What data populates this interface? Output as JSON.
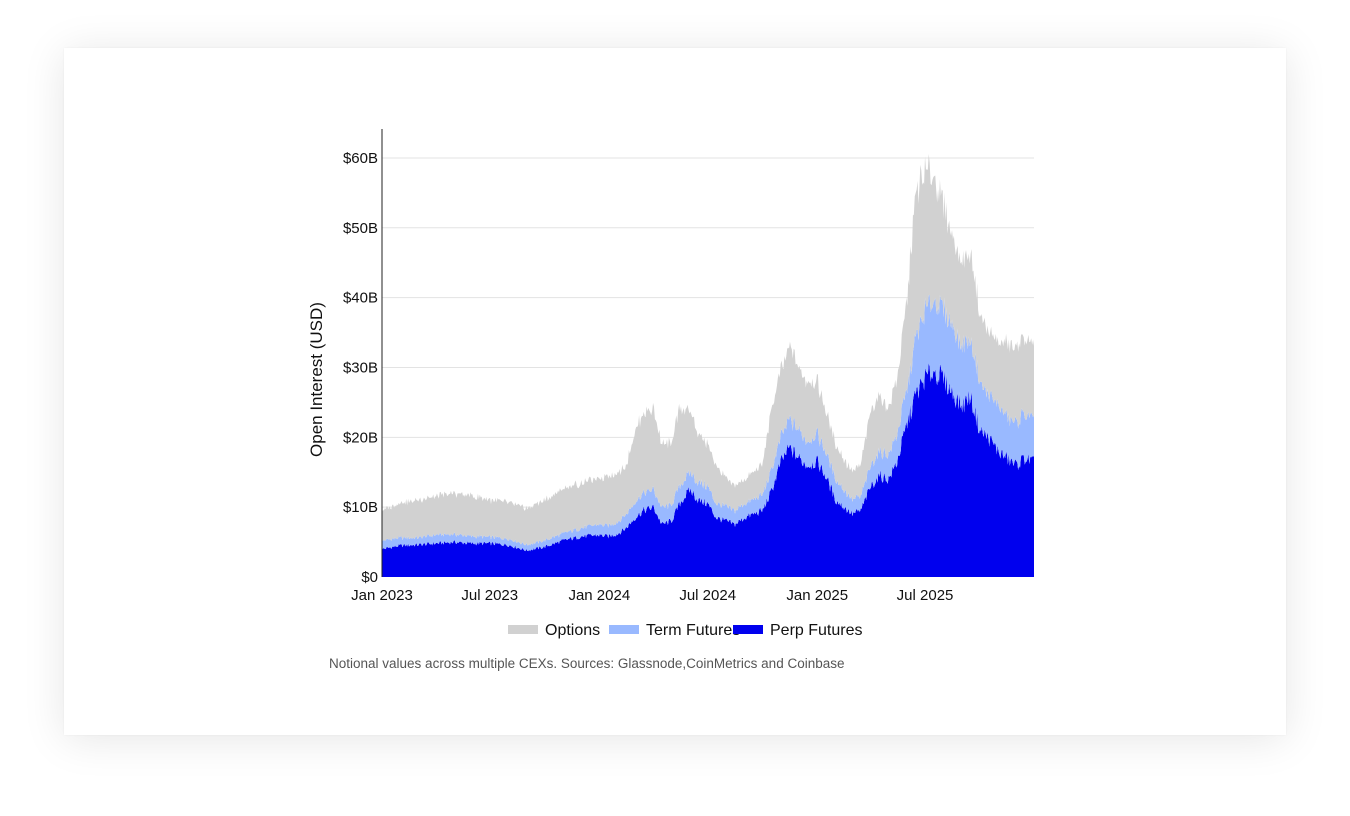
{
  "chart_data": {
    "type": "area",
    "stacked": true,
    "ylabel": "Open Interest (USD)",
    "xlabel": "",
    "ylim": [
      0,
      64
    ],
    "y_unit": "billion USD",
    "yticks": [
      0,
      10,
      20,
      30,
      40,
      50,
      60
    ],
    "ytick_labels": [
      "$0",
      "$10B",
      "$20B",
      "$30B",
      "$40B",
      "$50B",
      "$60B"
    ],
    "x_range": [
      "2023-01-01",
      "2025-12-31"
    ],
    "xticks": [
      "2023-01-01",
      "2023-07-01",
      "2024-01-01",
      "2024-07-01",
      "2025-01-01",
      "2025-07-01"
    ],
    "xtick_labels": [
      "Jan 2023",
      "Jul 2023",
      "Jan 2024",
      "Jul 2024",
      "Jan 2025",
      "Jul 2025"
    ],
    "grid": "horizontal",
    "legend_position": "bottom",
    "legend": [
      "Options",
      "Term Futures",
      "Perp Futures"
    ],
    "note": "Notional values across multiple CEXs. Sources: Glassnode,CoinMetrics and Coinbase",
    "dates": [
      "2023-01-01",
      "2023-02-01",
      "2023-03-01",
      "2023-04-01",
      "2023-05-01",
      "2023-06-01",
      "2023-07-01",
      "2023-08-01",
      "2023-09-01",
      "2023-10-01",
      "2023-11-01",
      "2023-12-01",
      "2024-01-01",
      "2024-01-15",
      "2024-02-01",
      "2024-02-15",
      "2024-03-01",
      "2024-03-15",
      "2024-04-01",
      "2024-04-15",
      "2024-05-01",
      "2024-05-15",
      "2024-06-01",
      "2024-06-15",
      "2024-07-01",
      "2024-07-15",
      "2024-08-01",
      "2024-08-15",
      "2024-09-01",
      "2024-10-01",
      "2024-10-15",
      "2024-11-01",
      "2024-11-15",
      "2024-12-01",
      "2024-12-15",
      "2025-01-01",
      "2025-01-15",
      "2025-02-01",
      "2025-02-15",
      "2025-03-01",
      "2025-03-15",
      "2025-04-01",
      "2025-04-15",
      "2025-05-01",
      "2025-05-15",
      "2025-06-01",
      "2025-06-15",
      "2025-07-01",
      "2025-07-15",
      "2025-08-01",
      "2025-08-15",
      "2025-09-01",
      "2025-09-15",
      "2025-10-01",
      "2025-10-15",
      "2025-11-01",
      "2025-11-15",
      "2025-12-01",
      "2025-12-15",
      "2025-12-31"
    ],
    "series": [
      {
        "name": "Perp Futures",
        "color": "#0000ee",
        "values": [
          4.0,
          4.5,
          4.6,
          4.8,
          5.0,
          4.8,
          4.8,
          4.6,
          3.8,
          4.3,
          5.2,
          5.8,
          6.0,
          5.8,
          6.2,
          7.0,
          8.5,
          9.5,
          10.0,
          7.5,
          8.0,
          10.5,
          12.5,
          11.0,
          10.5,
          8.5,
          8.0,
          7.5,
          8.5,
          9.5,
          12.0,
          16.5,
          18.5,
          17.0,
          16.0,
          16.5,
          14.5,
          11.0,
          10.0,
          9.0,
          9.5,
          13.0,
          14.5,
          14.0,
          16.5,
          22.0,
          26.0,
          28.5,
          29.5,
          28.5,
          26.5,
          24.5,
          26.0,
          21.0,
          20.0,
          18.0,
          17.0,
          16.0,
          17.0,
          16.5
        ]
      },
      {
        "name": "Term Futures",
        "color": "#99b9ff",
        "values": [
          1.2,
          1.1,
          1.0,
          1.2,
          1.1,
          1.0,
          0.9,
          0.9,
          0.8,
          0.9,
          1.0,
          1.2,
          1.5,
          1.5,
          1.7,
          2.0,
          2.2,
          2.5,
          2.5,
          2.3,
          2.3,
          2.5,
          2.5,
          2.5,
          2.5,
          2.0,
          2.0,
          2.0,
          2.0,
          2.2,
          3.0,
          3.5,
          4.0,
          4.0,
          3.5,
          4.0,
          3.5,
          3.0,
          2.5,
          2.0,
          2.0,
          3.0,
          3.5,
          3.5,
          4.0,
          5.0,
          8.0,
          9.5,
          10.0,
          10.0,
          9.5,
          8.5,
          8.0,
          7.0,
          6.0,
          6.5,
          6.0,
          6.0,
          6.5,
          6.0
        ]
      },
      {
        "name": "Options",
        "color": "#d1d1d1",
        "values": [
          4.3,
          5.0,
          5.4,
          5.5,
          5.9,
          5.8,
          5.3,
          5.3,
          5.2,
          5.8,
          6.3,
          6.5,
          6.5,
          7.2,
          7.1,
          7.0,
          10.3,
          11.5,
          11.5,
          9.2,
          8.7,
          11.0,
          9.0,
          7.0,
          6.0,
          5.5,
          4.0,
          3.5,
          3.5,
          4.3,
          8.5,
          9.5,
          10.5,
          9.0,
          8.5,
          7.5,
          6.0,
          5.0,
          4.5,
          4.0,
          4.5,
          8.0,
          8.0,
          6.5,
          8.0,
          13.0,
          21.0,
          20.0,
          18.0,
          15.0,
          13.0,
          12.0,
          12.5,
          10.0,
          9.0,
          9.0,
          10.5,
          11.0,
          11.0,
          10.5
        ]
      }
    ]
  }
}
